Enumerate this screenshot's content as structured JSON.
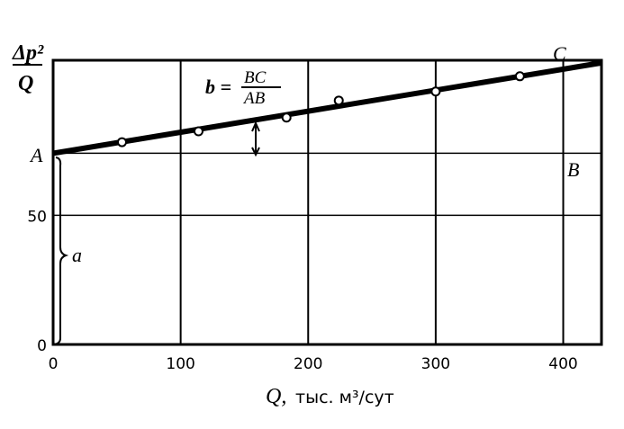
{
  "chart_data": {
    "type": "line",
    "title": "",
    "ylabel": "Δp²/Q",
    "xlabel_symbol": "Q,",
    "xlabel_units": "тыс. м³/сут",
    "xlim": [
      0,
      430
    ],
    "ylim": [
      0,
      110
    ],
    "grid": true,
    "x_ticks": [
      0,
      100,
      200,
      300,
      400
    ],
    "x_tick_labels": [
      "0",
      "100",
      "200",
      "300",
      "400"
    ],
    "y_ticks": [
      0,
      50
    ],
    "y_tick_labels": [
      "0",
      "50"
    ],
    "points": {
      "x": [
        54,
        114,
        183,
        224,
        300,
        366
      ],
      "y": [
        78.3,
        82.5,
        87.8,
        94.4,
        97.9,
        103.8
      ]
    },
    "fit_line": {
      "x": [
        0,
        430
      ],
      "y": [
        74,
        109
      ]
    },
    "reference_level": 74,
    "annotations": {
      "A": "A",
      "B": "B",
      "C": "C",
      "a": "a",
      "formula_lhs": "b =",
      "formula_num": "BC",
      "formula_den": "AB"
    },
    "colors": {
      "ink": "#000000",
      "background": "#ffffff"
    }
  }
}
